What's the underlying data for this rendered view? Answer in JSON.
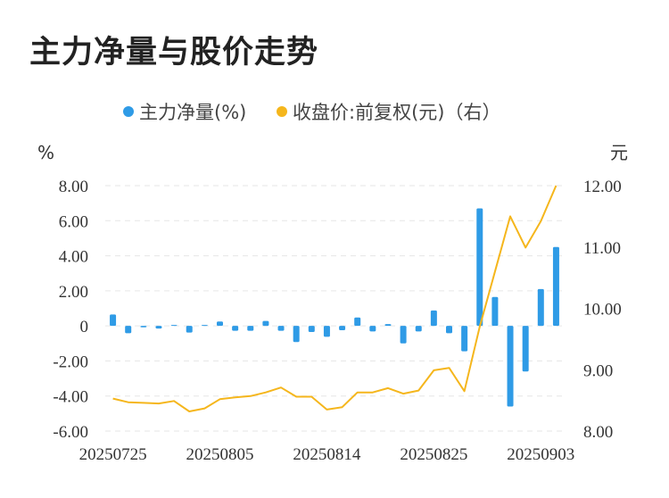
{
  "title": "主力净量与股价走势",
  "colors": {
    "bar": "#2f9be6",
    "line": "#f5b61c",
    "grid": "#e6e6e6"
  },
  "chart_data": {
    "type": "bar",
    "legend": {
      "placement": "top-center",
      "items": [
        "主力净量(%)",
        "收盘价:前复权(元)（右）"
      ]
    },
    "left_axis": {
      "unit": "%",
      "ylim": [
        -6,
        8
      ],
      "ticks": [
        "8.00",
        "6.00",
        "4.00",
        "2.00",
        "0",
        "-2.00",
        "-4.00",
        "-6.00"
      ],
      "tick_values": [
        8,
        6,
        4,
        2,
        0,
        -2,
        -4,
        -6
      ]
    },
    "right_axis": {
      "unit": "元",
      "ylim": [
        8,
        12
      ],
      "ticks": [
        "12.00",
        "11.00",
        "10.00",
        "9.00",
        "8.00"
      ],
      "tick_values": [
        12,
        11,
        10,
        9,
        8
      ]
    },
    "x_tick_labels": [
      {
        "index": 0,
        "label": "20250725"
      },
      {
        "index": 7,
        "label": "20250805"
      },
      {
        "index": 14,
        "label": "20250814"
      },
      {
        "index": 21,
        "label": "20250825"
      },
      {
        "index": 28,
        "label": "20250903"
      }
    ],
    "grid": true,
    "series": [
      {
        "name": "主力净量(%)",
        "type": "bar",
        "axis": "left",
        "values": [
          0.65,
          -0.42,
          -0.08,
          -0.15,
          0.05,
          -0.38,
          0.05,
          0.25,
          -0.28,
          -0.28,
          0.28,
          -0.28,
          -0.92,
          -0.35,
          -0.62,
          -0.25,
          0.48,
          -0.32,
          0.1,
          -1.0,
          -0.32,
          0.88,
          -0.42,
          -1.45,
          6.7,
          1.65,
          -4.6,
          -2.6,
          2.1,
          4.5
        ]
      },
      {
        "name": "收盘价:前复权(元)（右）",
        "type": "line",
        "axis": "right",
        "values": [
          8.53,
          8.47,
          8.46,
          8.45,
          8.49,
          8.32,
          8.37,
          8.52,
          8.55,
          8.57,
          8.63,
          8.71,
          8.56,
          8.56,
          8.35,
          8.39,
          8.63,
          8.63,
          8.7,
          8.61,
          8.66,
          8.99,
          9.03,
          8.65,
          9.7,
          10.6,
          11.5,
          10.99,
          11.42,
          12.0
        ]
      }
    ]
  }
}
